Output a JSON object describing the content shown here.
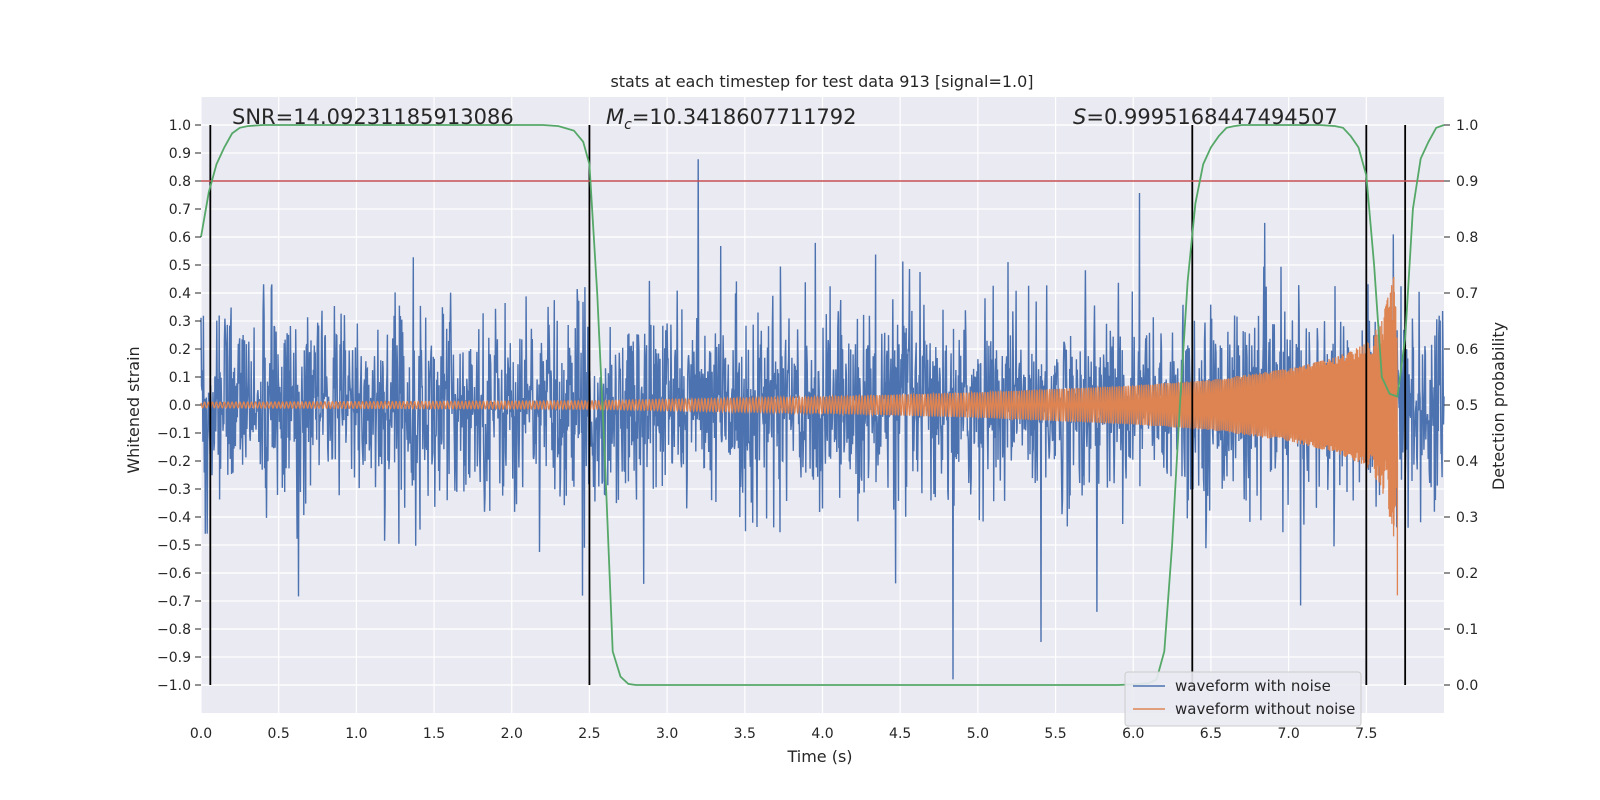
{
  "chart_data": {
    "type": "line",
    "title": "stats at each timestep for test data 913 [signal=1.0]",
    "xlabel": "Time (s)",
    "ylabel": "Whitened strain",
    "ylabel_right": "Detection probability",
    "xlim": [
      0.0,
      8.0
    ],
    "ylim": [
      -1.1,
      1.1
    ],
    "ylim_right": [
      -0.05,
      1.05
    ],
    "grid": true,
    "legend_position": "lower-right",
    "x_ticks": [
      "0.0",
      "0.5",
      "1.0",
      "1.5",
      "2.0",
      "2.5",
      "3.0",
      "3.5",
      "4.0",
      "4.5",
      "5.0",
      "5.5",
      "6.0",
      "6.5",
      "7.0",
      "7.5"
    ],
    "y_ticks": [
      "1.0",
      "0.9",
      "0.8",
      "0.7",
      "0.6",
      "0.5",
      "0.4",
      "0.3",
      "0.2",
      "0.1",
      "0.0",
      "−0.1",
      "−0.2",
      "−0.3",
      "−0.4",
      "−0.5",
      "−0.6",
      "−0.7",
      "−0.8",
      "−0.9",
      "−1.0"
    ],
    "y_ticks_right": [
      "1.0",
      "0.9",
      "0.8",
      "0.7",
      "0.6",
      "0.5",
      "0.4",
      "0.3",
      "0.2",
      "0.1",
      "0.0"
    ],
    "annotations": {
      "snr": "SNR=14.09231185913086",
      "mc_symbol": "M",
      "mc_sub": "c",
      "mc_value": "=10.3418607711792",
      "s_symbol": "S",
      "s_value": "=0.9995168447494507"
    },
    "threshold_line": {
      "y": 0.8,
      "color": "#c44e52"
    },
    "vertical_lines_x": [
      0.06,
      2.5,
      6.38,
      7.5,
      7.75
    ],
    "series": [
      {
        "name": "waveform with noise",
        "color": "#4c72b0",
        "axis": "left",
        "description_values": {
          "typical_amplitude": 0.35,
          "peak_max": 0.99,
          "peak_min": -0.98
        }
      },
      {
        "name": "waveform without noise",
        "color": "#dd8452",
        "axis": "left",
        "envelope": [
          {
            "x": 0.0,
            "amp": 0.01
          },
          {
            "x": 2.5,
            "amp": 0.015
          },
          {
            "x": 4.0,
            "amp": 0.03
          },
          {
            "x": 5.0,
            "amp": 0.045
          },
          {
            "x": 6.0,
            "amp": 0.07
          },
          {
            "x": 6.5,
            "amp": 0.09
          },
          {
            "x": 7.0,
            "amp": 0.13
          },
          {
            "x": 7.3,
            "amp": 0.17
          },
          {
            "x": 7.5,
            "amp": 0.22
          },
          {
            "x": 7.6,
            "amp": 0.3
          },
          {
            "x": 7.68,
            "amp": 0.48
          },
          {
            "x": 7.7,
            "amp": 0.2
          }
        ]
      },
      {
        "name": "detection probability",
        "color": "#55a868",
        "axis": "right",
        "x": [
          0.0,
          0.05,
          0.1,
          0.15,
          0.2,
          0.25,
          0.3,
          0.4,
          0.6,
          1.0,
          2.0,
          2.2,
          2.3,
          2.4,
          2.46,
          2.5,
          2.55,
          2.6,
          2.65,
          2.7,
          2.75,
          2.8,
          3.0,
          4.0,
          5.0,
          5.9,
          6.0,
          6.1,
          6.15,
          6.2,
          6.25,
          6.3,
          6.35,
          6.4,
          6.45,
          6.5,
          6.55,
          6.6,
          6.65,
          6.7,
          6.8,
          7.0,
          7.2,
          7.3,
          7.35,
          7.4,
          7.45,
          7.5,
          7.55,
          7.6,
          7.65,
          7.7,
          7.75,
          7.8,
          7.85,
          7.9,
          7.95,
          8.0
        ],
        "y": [
          0.8,
          0.88,
          0.93,
          0.96,
          0.985,
          0.995,
          0.998,
          1.0,
          1.0,
          1.0,
          1.0,
          1.0,
          0.998,
          0.99,
          0.97,
          0.93,
          0.7,
          0.4,
          0.06,
          0.015,
          0.002,
          0.0,
          0.0,
          0.0,
          0.0,
          0.0,
          0.001,
          0.003,
          0.01,
          0.06,
          0.25,
          0.5,
          0.72,
          0.86,
          0.93,
          0.96,
          0.98,
          0.995,
          0.998,
          1.0,
          1.0,
          1.0,
          1.0,
          0.998,
          0.995,
          0.98,
          0.96,
          0.91,
          0.75,
          0.55,
          0.52,
          0.515,
          0.62,
          0.85,
          0.94,
          0.97,
          0.995,
          1.0
        ]
      }
    ]
  }
}
